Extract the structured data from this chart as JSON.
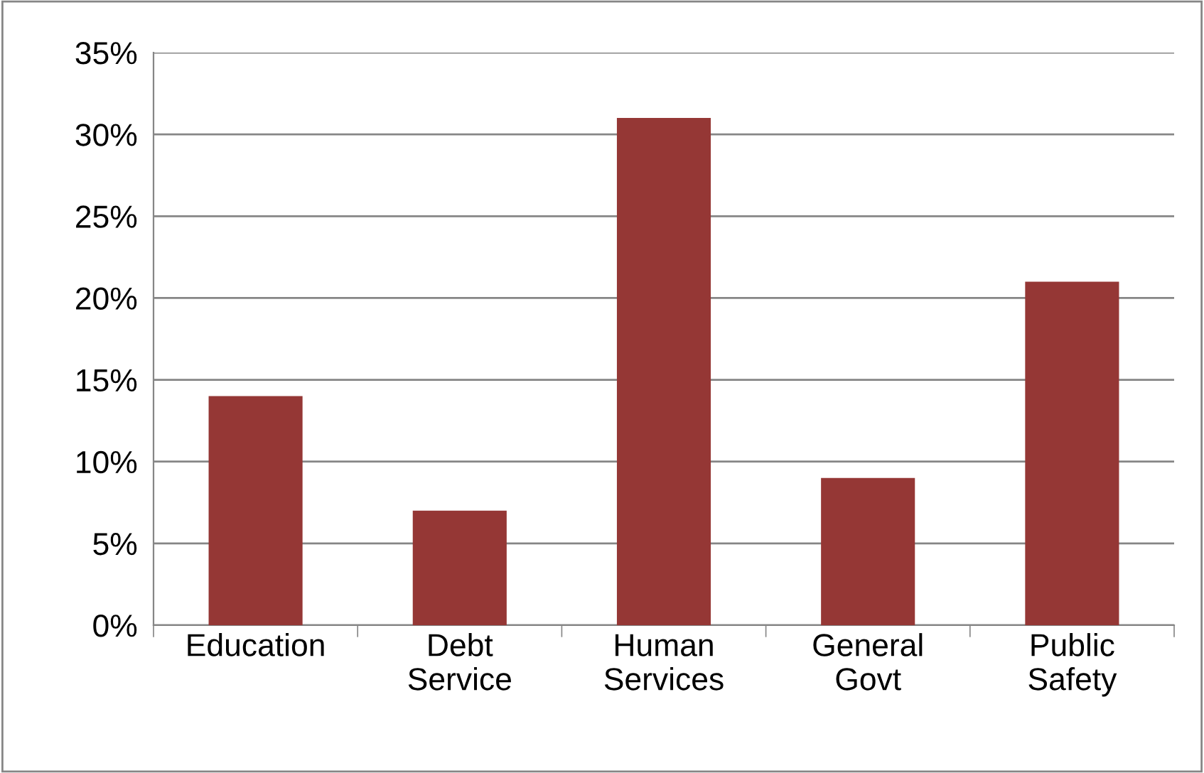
{
  "chart_data": {
    "type": "bar",
    "categories": [
      "Education",
      "Debt\nService",
      "Human\nServices",
      "General\nGovt",
      "Public\nSafety"
    ],
    "values": [
      14,
      7,
      31,
      9,
      21
    ],
    "color": "#953735",
    "ylim": [
      0,
      35
    ],
    "yticks": [
      {
        "value": 0,
        "label": "0%"
      },
      {
        "value": 5,
        "label": "5%"
      },
      {
        "value": 10,
        "label": "10%"
      },
      {
        "value": 15,
        "label": "15%"
      },
      {
        "value": 20,
        "label": "20%"
      },
      {
        "value": 25,
        "label": "25%"
      },
      {
        "value": 30,
        "label": "30%"
      },
      {
        "value": 35,
        "label": "35%"
      }
    ],
    "grid": "y",
    "legend": false
  }
}
